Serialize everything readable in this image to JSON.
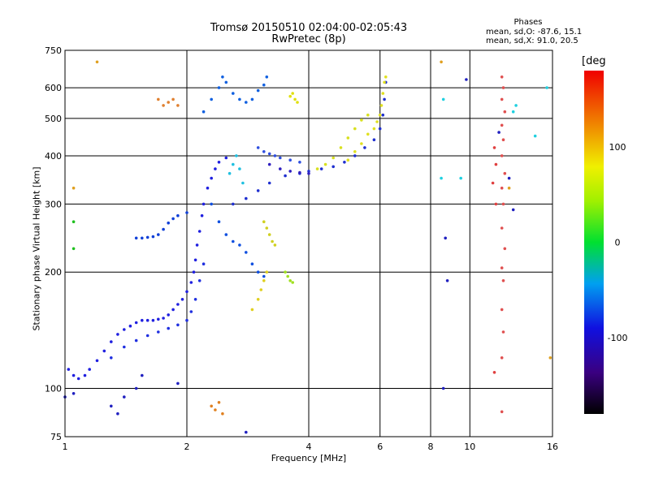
{
  "chart_data": {
    "type": "scatter",
    "title": "Tromsø 20150510 02:04:00-02:05:43",
    "subtitle": "RwPretec (8p)",
    "xlabel": "Frequency [MHz]",
    "ylabel": "Stationary phase Virtual Height [km]",
    "x_scale": "log",
    "y_scale": "log",
    "xlim": [
      1,
      16
    ],
    "ylim": [
      75,
      750
    ],
    "x_ticks": [
      "1",
      "2",
      "4",
      "6",
      "8",
      "10",
      "16"
    ],
    "y_ticks": [
      "75",
      "100",
      "200",
      "300",
      "400",
      "500",
      "600",
      "750"
    ],
    "grid": true,
    "phases": {
      "title": "Phases",
      "o_label": "mean, sd,O:",
      "o_values": "-87.6, 15.1",
      "x_label": "mean, sd,X:",
      "x_values": "91.0, 20.5"
    },
    "colorbar": {
      "unit": "[deg",
      "ticks": [
        "100",
        "0",
        "-100"
      ],
      "range": [
        -180,
        180
      ]
    },
    "series": [
      {
        "color": "#2020e0",
        "points": [
          [
            1.02,
            112
          ],
          [
            1.05,
            108
          ],
          [
            1.08,
            106
          ],
          [
            1.12,
            108
          ],
          [
            1.15,
            112
          ],
          [
            1.2,
            118
          ],
          [
            1.25,
            125
          ],
          [
            1.3,
            132
          ],
          [
            1.35,
            138
          ],
          [
            1.4,
            142
          ],
          [
            1.45,
            145
          ],
          [
            1.5,
            148
          ],
          [
            1.55,
            150
          ],
          [
            1.6,
            150
          ],
          [
            1.65,
            150
          ],
          [
            1.7,
            151
          ],
          [
            1.75,
            152
          ],
          [
            1.8,
            155
          ],
          [
            1.85,
            160
          ],
          [
            1.9,
            165
          ],
          [
            1.95,
            170
          ],
          [
            2.0,
            178
          ],
          [
            2.05,
            188
          ],
          [
            2.08,
            200
          ],
          [
            2.1,
            215
          ],
          [
            2.12,
            235
          ],
          [
            2.15,
            255
          ],
          [
            2.18,
            280
          ],
          [
            2.2,
            300
          ],
          [
            2.25,
            330
          ],
          [
            2.3,
            350
          ],
          [
            2.35,
            370
          ],
          [
            2.4,
            385
          ],
          [
            2.5,
            395
          ]
        ]
      },
      {
        "color": "#2030e0",
        "points": [
          [
            1.3,
            120
          ],
          [
            1.4,
            128
          ],
          [
            1.5,
            133
          ],
          [
            1.6,
            137
          ],
          [
            1.7,
            140
          ],
          [
            1.8,
            143
          ],
          [
            1.9,
            146
          ],
          [
            2.0,
            150
          ],
          [
            2.05,
            158
          ],
          [
            2.1,
            170
          ],
          [
            2.15,
            190
          ],
          [
            2.2,
            210
          ]
        ]
      },
      {
        "color": "#1040d8",
        "points": [
          [
            1.5,
            245
          ],
          [
            1.55,
            245
          ],
          [
            1.6,
            246
          ],
          [
            1.65,
            247
          ],
          [
            1.7,
            250
          ],
          [
            1.75,
            258
          ],
          [
            1.8,
            268
          ],
          [
            1.85,
            275
          ],
          [
            1.9,
            280
          ],
          [
            2.0,
            285
          ]
        ]
      },
      {
        "color": "#1060e0",
        "points": [
          [
            2.2,
            520
          ],
          [
            2.3,
            560
          ],
          [
            2.4,
            600
          ],
          [
            2.45,
            640
          ],
          [
            2.5,
            620
          ],
          [
            2.6,
            580
          ],
          [
            2.7,
            560
          ],
          [
            2.8,
            550
          ],
          [
            2.9,
            560
          ],
          [
            3.0,
            590
          ],
          [
            3.1,
            610
          ],
          [
            3.15,
            640
          ]
        ]
      },
      {
        "color": "#1050e0",
        "points": [
          [
            2.3,
            300
          ],
          [
            2.4,
            270
          ],
          [
            2.5,
            250
          ],
          [
            2.6,
            240
          ],
          [
            2.7,
            235
          ],
          [
            2.8,
            225
          ],
          [
            2.9,
            210
          ],
          [
            3.0,
            200
          ],
          [
            3.1,
            195
          ]
        ]
      },
      {
        "color": "#2030d0",
        "points": [
          [
            2.6,
            300
          ],
          [
            2.8,
            310
          ],
          [
            3.0,
            325
          ],
          [
            3.2,
            340
          ],
          [
            3.5,
            355
          ],
          [
            3.8,
            360
          ],
          [
            4.0,
            365
          ],
          [
            4.3,
            370
          ],
          [
            4.6,
            375
          ],
          [
            4.9,
            385
          ],
          [
            5.2,
            400
          ],
          [
            5.5,
            420
          ],
          [
            5.8,
            440
          ],
          [
            6.0,
            470
          ],
          [
            6.1,
            510
          ],
          [
            6.15,
            560
          ],
          [
            6.2,
            620
          ]
        ]
      },
      {
        "color": "#3020c0",
        "points": [
          [
            3.2,
            380
          ],
          [
            3.4,
            370
          ],
          [
            3.6,
            365
          ],
          [
            3.8,
            362
          ],
          [
            4.0,
            360
          ]
        ]
      },
      {
        "color": "#3050e0",
        "points": [
          [
            3.0,
            420
          ],
          [
            3.1,
            410
          ],
          [
            3.2,
            405
          ],
          [
            3.3,
            400
          ],
          [
            3.4,
            395
          ],
          [
            3.6,
            390
          ],
          [
            3.8,
            385
          ]
        ]
      },
      {
        "color": "#e0e020",
        "points": [
          [
            5.0,
            390
          ],
          [
            5.2,
            410
          ],
          [
            5.4,
            430
          ],
          [
            5.6,
            455
          ],
          [
            5.8,
            470
          ],
          [
            5.9,
            490
          ],
          [
            6.0,
            510
          ],
          [
            6.05,
            540
          ],
          [
            6.1,
            580
          ],
          [
            6.15,
            620
          ],
          [
            6.2,
            640
          ]
        ]
      },
      {
        "color": "#d8e020",
        "points": [
          [
            4.2,
            370
          ],
          [
            4.4,
            380
          ],
          [
            4.6,
            395
          ],
          [
            4.8,
            420
          ],
          [
            5.0,
            445
          ],
          [
            5.2,
            470
          ],
          [
            5.4,
            495
          ],
          [
            5.6,
            510
          ]
        ]
      },
      {
        "color": "#e0d020",
        "points": [
          [
            2.9,
            160
          ],
          [
            3.0,
            170
          ],
          [
            3.05,
            180
          ],
          [
            3.1,
            190
          ],
          [
            3.15,
            200
          ]
        ]
      },
      {
        "color": "#d0d020",
        "points": [
          [
            3.1,
            270
          ],
          [
            3.15,
            260
          ],
          [
            3.2,
            250
          ],
          [
            3.25,
            240
          ],
          [
            3.3,
            235
          ]
        ]
      },
      {
        "color": "#e0e010",
        "points": [
          [
            3.6,
            570
          ],
          [
            3.65,
            580
          ],
          [
            3.7,
            560
          ],
          [
            3.75,
            550
          ]
        ]
      },
      {
        "color": "#a0e020",
        "points": [
          [
            3.5,
            200
          ],
          [
            3.55,
            195
          ],
          [
            3.6,
            190
          ],
          [
            3.65,
            188
          ]
        ]
      },
      {
        "color": "#20c0e0",
        "points": [
          [
            2.55,
            360
          ],
          [
            2.6,
            380
          ],
          [
            2.65,
            400
          ],
          [
            2.7,
            370
          ],
          [
            2.75,
            340
          ]
        ]
      },
      {
        "color": "#e08020",
        "points": [
          [
            2.3,
            90
          ],
          [
            2.35,
            88
          ],
          [
            2.4,
            92
          ],
          [
            2.45,
            86
          ]
        ]
      },
      {
        "color": "#e05050",
        "points": [
          [
            12.0,
            640
          ],
          [
            12.1,
            600
          ],
          [
            12.0,
            560
          ],
          [
            12.2,
            520
          ],
          [
            12.0,
            480
          ],
          [
            12.1,
            440
          ],
          [
            12.0,
            400
          ],
          [
            12.2,
            360
          ],
          [
            12.0,
            330
          ],
          [
            12.1,
            300
          ],
          [
            12.0,
            260
          ],
          [
            12.2,
            230
          ],
          [
            12.0,
            205
          ],
          [
            12.1,
            190
          ],
          [
            12.0,
            160
          ],
          [
            12.1,
            140
          ],
          [
            12.0,
            120
          ],
          [
            12.0,
            87
          ]
        ]
      },
      {
        "color": "#e04040",
        "points": [
          [
            11.5,
            420
          ],
          [
            11.6,
            380
          ],
          [
            11.4,
            340
          ],
          [
            11.6,
            300
          ],
          [
            11.5,
            110
          ]
        ]
      },
      {
        "color": "#e08030",
        "points": [
          [
            1.7,
            560
          ],
          [
            1.75,
            540
          ],
          [
            1.8,
            550
          ],
          [
            1.85,
            560
          ],
          [
            1.9,
            540
          ]
        ]
      },
      {
        "color": "#20d0e0",
        "points": [
          [
            8.6,
            560
          ],
          [
            8.5,
            350
          ],
          [
            9.5,
            350
          ],
          [
            13.0,
            540
          ],
          [
            14.5,
            450
          ],
          [
            15.5,
            600
          ],
          [
            12.8,
            520
          ]
        ]
      },
      {
        "color": "#20c020",
        "points": [
          [
            1.05,
            270
          ],
          [
            1.05,
            230
          ]
        ]
      },
      {
        "color": "#e0a020",
        "points": [
          [
            1.05,
            330
          ],
          [
            1.2,
            700
          ],
          [
            8.5,
            700
          ],
          [
            12.5,
            330
          ],
          [
            15.8,
            120
          ]
        ]
      },
      {
        "color": "#2020c0",
        "points": [
          [
            1.0,
            95
          ],
          [
            1.05,
            97
          ],
          [
            1.3,
            90
          ],
          [
            1.35,
            86
          ],
          [
            1.4,
            95
          ],
          [
            1.5,
            100
          ],
          [
            1.55,
            108
          ],
          [
            1.9,
            103
          ],
          [
            2.8,
            77
          ],
          [
            8.7,
            245
          ],
          [
            8.8,
            190
          ],
          [
            8.6,
            100
          ],
          [
            9.8,
            630
          ],
          [
            11.8,
            460
          ],
          [
            12.5,
            350
          ],
          [
            12.8,
            290
          ]
        ]
      }
    ]
  }
}
